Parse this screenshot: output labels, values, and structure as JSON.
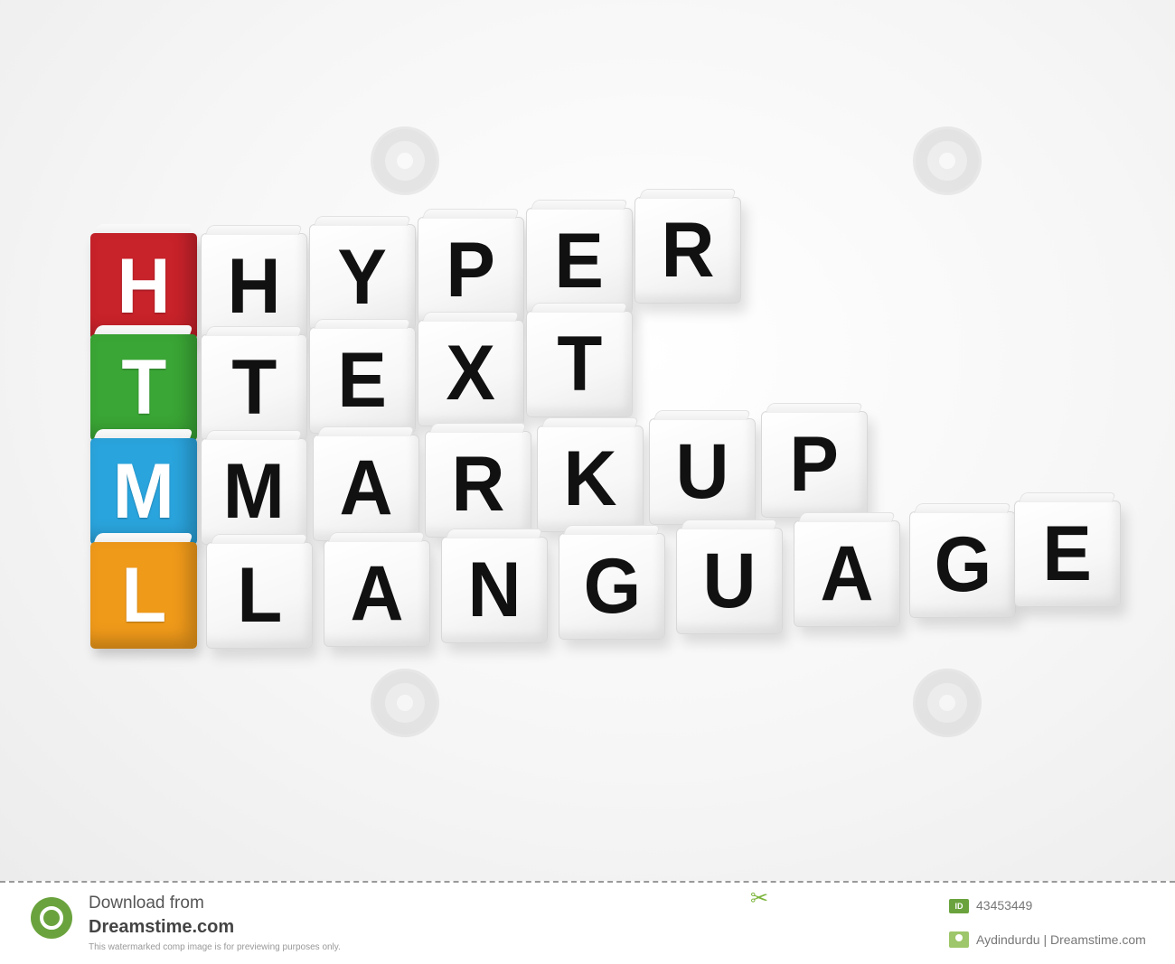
{
  "acronym": [
    {
      "letter": "H",
      "color": "#c8222a"
    },
    {
      "letter": "T",
      "color": "#3aa635"
    },
    {
      "letter": "M",
      "color": "#2aa4dd"
    },
    {
      "letter": "L",
      "color": "#f09a1a"
    }
  ],
  "words": [
    [
      "H",
      "Y",
      "P",
      "E",
      "R"
    ],
    [
      "T",
      "E",
      "X",
      "T"
    ],
    [
      "M",
      "A",
      "R",
      "K",
      "U",
      "P"
    ],
    [
      "L",
      "A",
      "N",
      "G",
      "U",
      "A",
      "G",
      "E"
    ]
  ],
  "footer": {
    "download_line": "Download from",
    "site_name": "Dreamstime.com",
    "note": "This watermarked comp image is for previewing purposes only.",
    "id_label": "ID",
    "id_value": "43453449",
    "author": "Aydindurdu | Dreamstime.com",
    "brand_color": "#6aa33d"
  }
}
